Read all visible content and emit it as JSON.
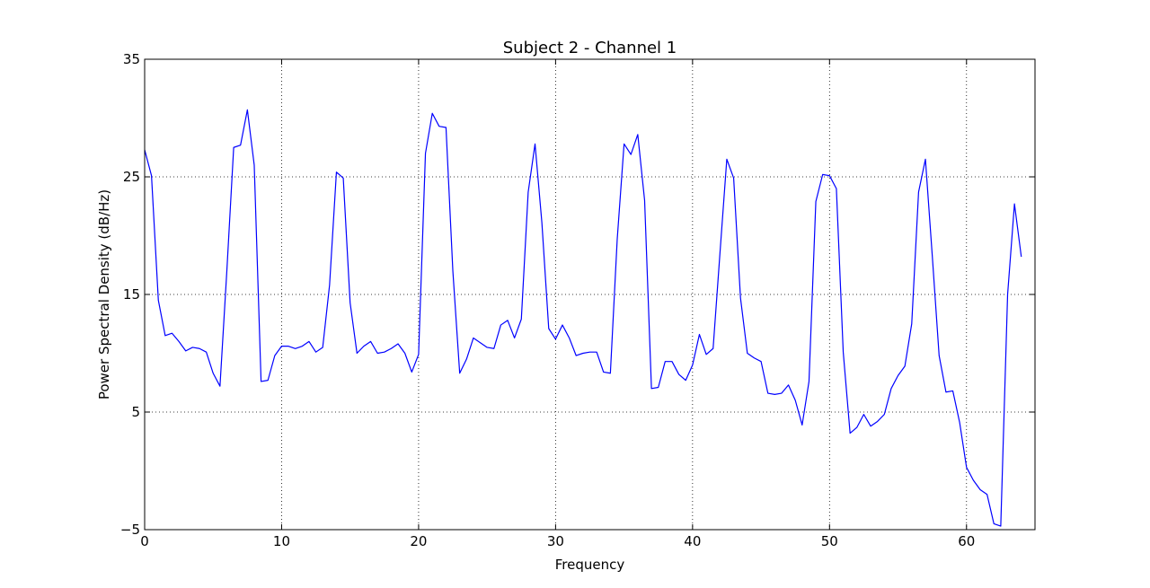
{
  "chart_data": {
    "type": "line",
    "title": "Subject 2 - Channel 1",
    "xlabel": "Frequency",
    "ylabel": "Power Spectral Density (dB/Hz)",
    "xlim": [
      0,
      65
    ],
    "ylim": [
      -5,
      35
    ],
    "xticks": [
      0,
      10,
      20,
      30,
      40,
      50,
      60
    ],
    "yticks": [
      -5,
      5,
      15,
      25,
      35
    ],
    "ytick_labels": [
      "−5",
      "5",
      "15",
      "25",
      "35"
    ],
    "xtick_labels": [
      "0",
      "10",
      "20",
      "30",
      "40",
      "50",
      "60"
    ],
    "grid": true,
    "line_color": "#0000ff",
    "series": [
      {
        "x": [
          0,
          0.5,
          1,
          1.5,
          2,
          2.5,
          3,
          3.5,
          4,
          4.5,
          5,
          5.5,
          6,
          6.5,
          7,
          7.5,
          8,
          8.5,
          9,
          9.5,
          10,
          10.5,
          11,
          11.5,
          12,
          12.5,
          13,
          13.5,
          14,
          14.5,
          15,
          15.5,
          16,
          16.5,
          17,
          17.5,
          18,
          18.5,
          19,
          19.5,
          20,
          20.5,
          21,
          21.5,
          22,
          22.5,
          23,
          23.5,
          24,
          24.5,
          25,
          25.5,
          26,
          26.5,
          27,
          27.5,
          28,
          28.5,
          29,
          29.5,
          30,
          30.5,
          31,
          31.5,
          32,
          32.5,
          33,
          33.5,
          34,
          34.5,
          35,
          35.5,
          36,
          36.5,
          37,
          37.5,
          38,
          38.5,
          39,
          39.5,
          40,
          40.5,
          41,
          41.5,
          42,
          42.5,
          43,
          43.5,
          44,
          44.5,
          45,
          45.5,
          46,
          46.5,
          47,
          47.5,
          48,
          48.5,
          49,
          49.5,
          50,
          50.5,
          51,
          51.5,
          52,
          52.5,
          53,
          53.5,
          54,
          54.5,
          55,
          55.5,
          56,
          56.5,
          57,
          57.5,
          58,
          58.5,
          59,
          59.5,
          60,
          60.5,
          61,
          61.5,
          62,
          62.5,
          63,
          63.5,
          64
        ],
        "values": [
          27.3,
          25.1,
          14.5,
          11.5,
          11.7,
          11.0,
          10.2,
          10.5,
          10.4,
          10.1,
          8.3,
          7.2,
          17.0,
          27.5,
          27.7,
          30.7,
          26.0,
          7.6,
          7.7,
          9.8,
          10.6,
          10.6,
          10.4,
          10.6,
          11.0,
          10.1,
          10.5,
          15.8,
          25.4,
          24.9,
          14.3,
          10.0,
          10.6,
          11.0,
          10.0,
          10.1,
          10.4,
          10.8,
          10.0,
          8.4,
          9.9,
          27.0,
          30.4,
          29.3,
          29.2,
          17.0,
          8.3,
          9.5,
          11.3,
          10.9,
          10.5,
          10.4,
          12.4,
          12.8,
          11.3,
          12.9,
          23.7,
          27.8,
          21.1,
          12.1,
          11.2,
          12.4,
          11.3,
          9.8,
          10.0,
          10.1,
          10.1,
          8.4,
          8.3,
          19.7,
          27.8,
          26.9,
          28.6,
          23.0,
          7.0,
          7.1,
          9.3,
          9.3,
          8.2,
          7.7,
          9.0,
          11.6,
          9.9,
          10.4,
          18.5,
          26.5,
          24.9,
          14.7,
          10.0,
          9.6,
          9.3,
          6.6,
          6.5,
          6.6,
          7.3,
          6.0,
          3.9,
          7.6,
          22.9,
          25.2,
          25.1,
          24.0,
          10.1,
          3.2,
          3.7,
          4.8,
          3.8,
          4.2,
          4.8,
          7.0,
          8.1,
          8.9,
          12.5,
          23.7,
          26.5,
          18.3,
          9.8,
          6.7,
          6.8,
          4.1,
          0.3,
          -0.8,
          -1.6,
          -2.0,
          -4.5,
          -4.7,
          15.0,
          22.7,
          18.2
        ]
      }
    ]
  }
}
